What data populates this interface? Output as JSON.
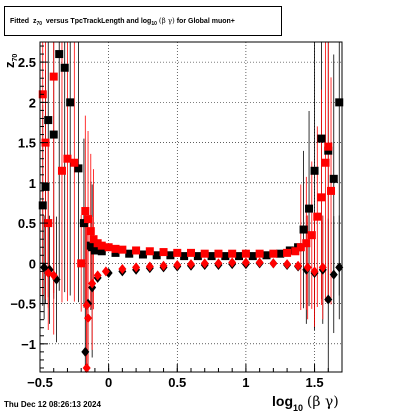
{
  "title": {
    "prefix": "Fitted",
    "z": "z",
    "z_sub": "70",
    "middle": "versus TpcTrackLength and log",
    "log_sub": "10",
    "beta_gamma": "(β  γ)",
    "suffix": "for Global muon+"
  },
  "datestamp": "Thu Dec 12 08:26:13 2024",
  "xlabel": {
    "log": "log",
    "sub": "10",
    "greek": "(β γ)"
  },
  "ylabel": {
    "z": "z",
    "sub": "70"
  },
  "colors": {
    "series_a": "#000000",
    "series_b": "#ff0000",
    "grid": "#000000",
    "frame": "#000000"
  },
  "chart_data": {
    "type": "scatter",
    "xlim": [
      -0.5,
      1.7
    ],
    "ylim": [
      -1.35,
      2.75
    ],
    "grid": true,
    "x_ticks": [
      {
        "value": -0.5,
        "label": "−0.5"
      },
      {
        "value": 0,
        "label": "0"
      },
      {
        "value": 0.5,
        "label": "0.5"
      },
      {
        "value": 1,
        "label": "1"
      },
      {
        "value": 1.5,
        "label": "1.5"
      }
    ],
    "y_ticks": [
      {
        "value": -1,
        "label": "−1"
      },
      {
        "value": -0.5,
        "label": "−0.5"
      },
      {
        "value": 0,
        "label": "0"
      },
      {
        "value": 0.5,
        "label": "0.5"
      },
      {
        "value": 1,
        "label": "1"
      },
      {
        "value": 1.5,
        "label": "1.5"
      },
      {
        "value": 2,
        "label": "2"
      },
      {
        "value": 2.5,
        "label": "2.5"
      }
    ],
    "series": [
      {
        "marker": "square",
        "color": "#000000",
        "points": [
          [
            -0.48,
            0.72
          ],
          [
            -0.46,
            0.95
          ],
          [
            -0.44,
            1.78
          ],
          [
            -0.4,
            1.6
          ],
          [
            -0.36,
            2.6
          ],
          [
            -0.32,
            2.43
          ],
          [
            -0.28,
            2.0
          ],
          [
            -0.22,
            1.18
          ],
          [
            -0.18,
            0.5
          ],
          [
            -0.13,
            0.22
          ],
          [
            -0.12,
            0.2
          ],
          [
            -0.1,
            0.16
          ],
          [
            -0.05,
            0.15
          ],
          [
            0.05,
            0.13
          ],
          [
            0.15,
            0.12
          ],
          [
            0.25,
            0.11
          ],
          [
            0.35,
            0.1
          ],
          [
            0.45,
            0.1
          ],
          [
            0.55,
            0.09
          ],
          [
            0.65,
            0.09
          ],
          [
            0.75,
            0.09
          ],
          [
            0.85,
            0.09
          ],
          [
            0.95,
            0.09
          ],
          [
            1.05,
            0.09
          ],
          [
            1.15,
            0.1
          ],
          [
            1.25,
            0.12
          ],
          [
            1.32,
            0.16
          ],
          [
            1.38,
            0.2
          ],
          [
            1.42,
            0.42
          ],
          [
            1.46,
            0.68
          ],
          [
            1.5,
            1.15
          ],
          [
            1.55,
            1.55
          ],
          [
            1.6,
            1.4
          ],
          [
            1.64,
            1.05
          ],
          [
            1.68,
            2.0
          ]
        ]
      },
      {
        "marker": "diamond",
        "color": "#000000",
        "points": [
          [
            -0.47,
            -0.05
          ],
          [
            -0.43,
            -0.08
          ],
          [
            -0.38,
            -0.2
          ],
          [
            -0.17,
            -1.1
          ],
          [
            -0.15,
            -0.5
          ],
          [
            -0.12,
            -0.3
          ],
          [
            -0.08,
            -0.18
          ],
          [
            0.0,
            -0.12
          ],
          [
            0.1,
            -0.1
          ],
          [
            0.2,
            -0.08
          ],
          [
            0.3,
            -0.06
          ],
          [
            0.4,
            -0.05
          ],
          [
            0.5,
            -0.04
          ],
          [
            0.6,
            -0.03
          ],
          [
            0.7,
            -0.02
          ],
          [
            0.8,
            -0.02
          ],
          [
            0.9,
            -0.01
          ],
          [
            1.0,
            -0.01
          ],
          [
            1.1,
            0.0
          ],
          [
            1.2,
            0.0
          ],
          [
            1.3,
            -0.02
          ],
          [
            1.38,
            -0.04
          ],
          [
            1.44,
            -0.08
          ],
          [
            1.5,
            -0.12
          ],
          [
            1.56,
            -0.08
          ],
          [
            1.6,
            -0.45
          ],
          [
            1.64,
            -0.14
          ],
          [
            1.68,
            -0.05
          ]
        ]
      },
      {
        "marker": "square",
        "color": "#ff0000",
        "points": [
          [
            -0.48,
            2.1
          ],
          [
            -0.46,
            1.5
          ],
          [
            -0.44,
            0.5
          ],
          [
            -0.4,
            2.32
          ],
          [
            -0.34,
            1.15
          ],
          [
            -0.3,
            1.3
          ],
          [
            -0.25,
            1.25
          ],
          [
            -0.2,
            0.0
          ],
          [
            -0.17,
            0.65
          ],
          [
            -0.15,
            0.55
          ],
          [
            -0.13,
            0.4
          ],
          [
            -0.11,
            0.3
          ],
          [
            -0.08,
            0.25
          ],
          [
            -0.05,
            0.22
          ],
          [
            0.0,
            0.2
          ],
          [
            0.05,
            0.18
          ],
          [
            0.1,
            0.17
          ],
          [
            0.2,
            0.16
          ],
          [
            0.3,
            0.15
          ],
          [
            0.4,
            0.14
          ],
          [
            0.5,
            0.13
          ],
          [
            0.6,
            0.13
          ],
          [
            0.7,
            0.12
          ],
          [
            0.8,
            0.12
          ],
          [
            0.9,
            0.12
          ],
          [
            1.0,
            0.12
          ],
          [
            1.1,
            0.12
          ],
          [
            1.2,
            0.12
          ],
          [
            1.3,
            0.13
          ],
          [
            1.36,
            0.15
          ],
          [
            1.4,
            0.2
          ],
          [
            1.44,
            0.25
          ],
          [
            1.48,
            0.35
          ],
          [
            1.52,
            0.58
          ],
          [
            1.55,
            0.82
          ],
          [
            1.58,
            1.25
          ],
          [
            1.6,
            1.45
          ],
          [
            1.62,
            0.9
          ]
        ]
      },
      {
        "marker": "diamond",
        "color": "#ff0000",
        "points": [
          [
            -0.44,
            -0.12
          ],
          [
            -0.4,
            -0.15
          ],
          [
            -0.16,
            -0.52
          ],
          [
            -0.15,
            -0.68
          ],
          [
            -0.16,
            -1.3
          ],
          [
            -0.12,
            -0.25
          ],
          [
            -0.08,
            -0.15
          ],
          [
            -0.02,
            -0.1
          ],
          [
            0.1,
            -0.07
          ],
          [
            0.2,
            -0.05
          ],
          [
            0.3,
            -0.04
          ],
          [
            0.4,
            -0.03
          ],
          [
            0.5,
            -0.02
          ],
          [
            0.6,
            -0.01
          ],
          [
            0.7,
            0.0
          ],
          [
            0.8,
            0.0
          ],
          [
            0.9,
            0.01
          ],
          [
            1.0,
            0.01
          ],
          [
            1.1,
            0.01
          ],
          [
            1.2,
            0.0
          ],
          [
            1.3,
            -0.01
          ],
          [
            1.38,
            -0.03
          ],
          [
            1.45,
            -0.05
          ],
          [
            1.5,
            -0.1
          ],
          [
            1.56,
            -0.05
          ]
        ]
      }
    ]
  }
}
